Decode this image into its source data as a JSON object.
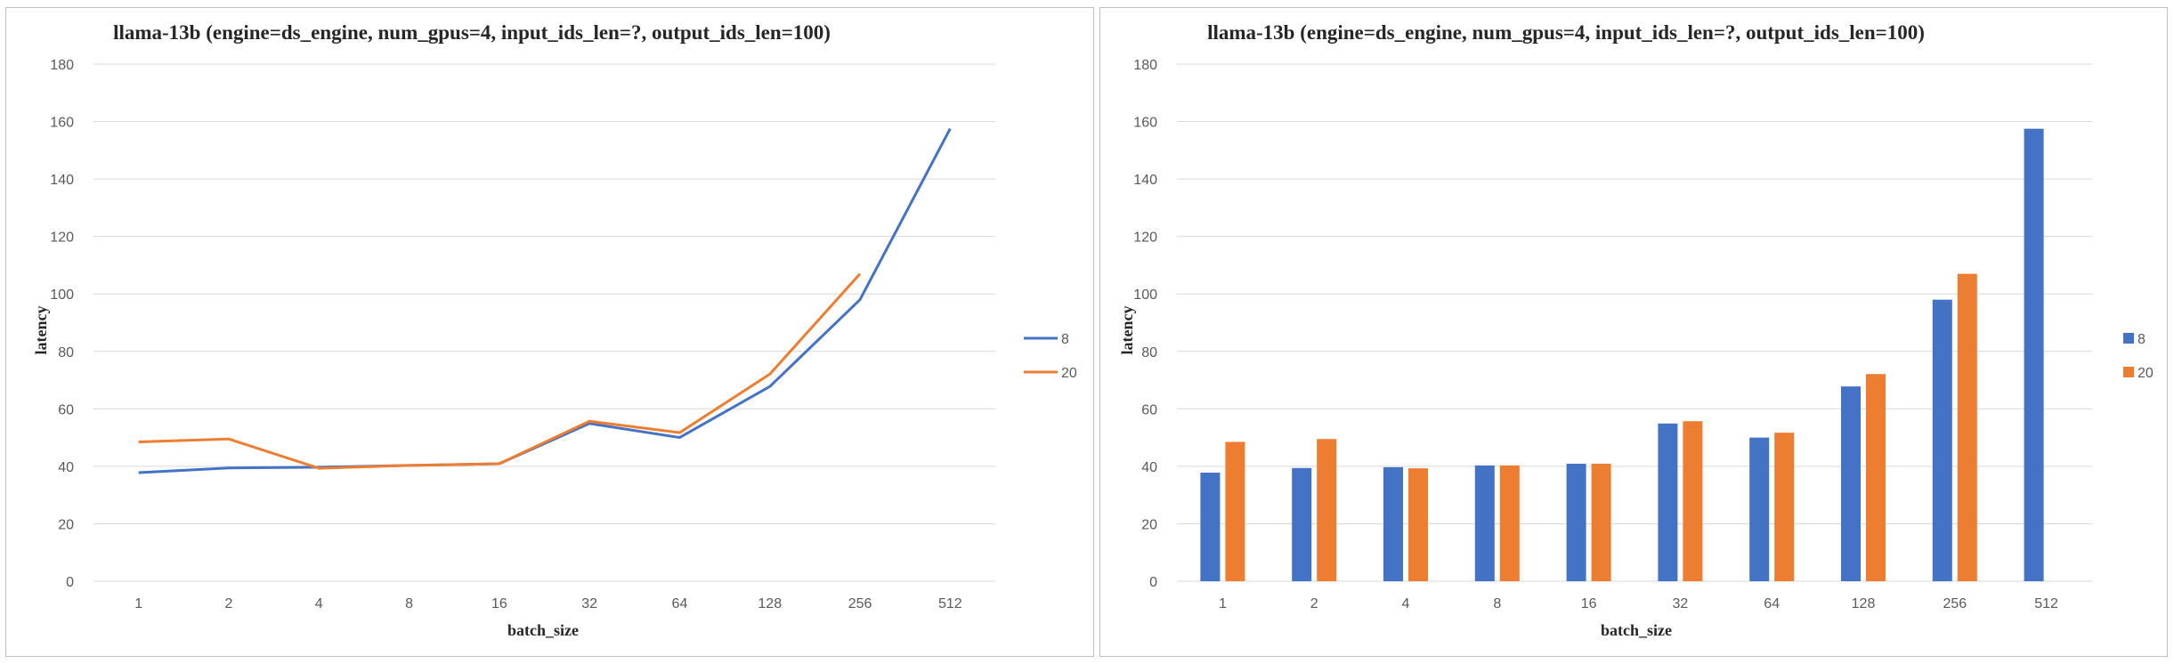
{
  "chart_data": [
    {
      "type": "line",
      "title": "llama-13b (engine=ds_engine, num_gpus=4, input_ids_len=?, output_ids_len=100)",
      "xlabel": "batch_size",
      "ylabel": "latency",
      "categories": [
        "1",
        "2",
        "4",
        "8",
        "16",
        "32",
        "64",
        "128",
        "256",
        "512"
      ],
      "ylim": [
        0,
        180
      ],
      "yticks": [
        0,
        20,
        40,
        60,
        80,
        100,
        120,
        140,
        160,
        180
      ],
      "grid": true,
      "legend_position": "right",
      "series": [
        {
          "name": "8",
          "color": "#4472c4",
          "values": [
            37.8,
            39.4,
            39.7,
            40.3,
            40.9,
            54.9,
            50.0,
            67.8,
            98.0,
            157.5
          ]
        },
        {
          "name": "20",
          "color": "#ed7d31",
          "values": [
            48.5,
            49.5,
            39.3,
            40.3,
            40.9,
            55.7,
            51.7,
            72.1,
            107.0,
            null
          ]
        }
      ]
    },
    {
      "type": "bar",
      "title": "llama-13b (engine=ds_engine, num_gpus=4, input_ids_len=?, output_ids_len=100)",
      "xlabel": "batch_size",
      "ylabel": "latency",
      "categories": [
        "1",
        "2",
        "4",
        "8",
        "16",
        "32",
        "64",
        "128",
        "256",
        "512"
      ],
      "ylim": [
        0,
        180
      ],
      "yticks": [
        0,
        20,
        40,
        60,
        80,
        100,
        120,
        140,
        160,
        180
      ],
      "grid": true,
      "legend_position": "right",
      "series": [
        {
          "name": "8",
          "color": "#4472c4",
          "values": [
            37.8,
            39.4,
            39.7,
            40.3,
            40.9,
            54.9,
            50.0,
            67.8,
            98.0,
            157.5
          ]
        },
        {
          "name": "20",
          "color": "#ed7d31",
          "values": [
            48.5,
            49.5,
            39.3,
            40.3,
            40.9,
            55.7,
            51.7,
            72.1,
            107.0,
            null
          ]
        }
      ]
    }
  ]
}
